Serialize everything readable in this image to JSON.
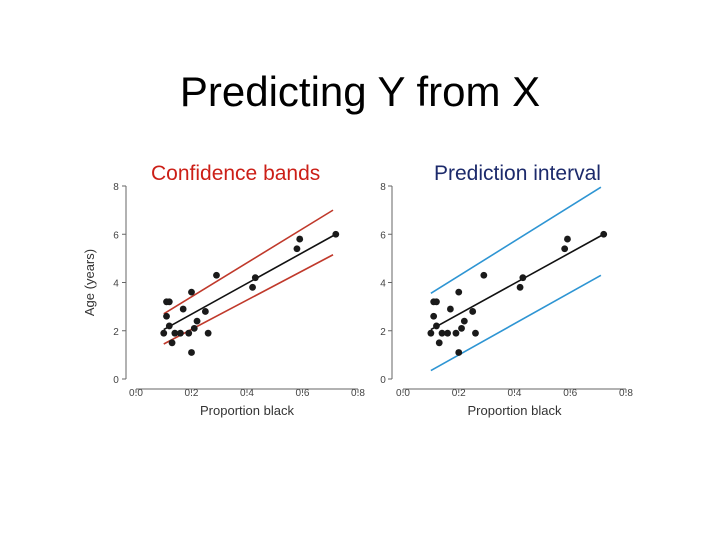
{
  "slide": {
    "title": "Predicting Y from X",
    "caption_left": "Confidence bands",
    "caption_right": "Prediction interval"
  },
  "chart_data": [
    {
      "type": "scatter",
      "title": "",
      "xlabel": "Proportion black",
      "ylabel": "Age (years)",
      "xlim": [
        0.0,
        0.8
      ],
      "ylim": [
        0,
        8
      ],
      "xticks": [
        "0.0",
        "0.2",
        "0.4",
        "0.6",
        "0.8"
      ],
      "yticks": [
        "0",
        "2",
        "4",
        "6",
        "8"
      ],
      "points": [
        {
          "x": 0.1,
          "y": 1.9
        },
        {
          "x": 0.11,
          "y": 2.6
        },
        {
          "x": 0.11,
          "y": 3.2
        },
        {
          "x": 0.12,
          "y": 3.2
        },
        {
          "x": 0.12,
          "y": 2.2
        },
        {
          "x": 0.13,
          "y": 1.5
        },
        {
          "x": 0.14,
          "y": 1.9
        },
        {
          "x": 0.16,
          "y": 1.9
        },
        {
          "x": 0.17,
          "y": 2.9
        },
        {
          "x": 0.19,
          "y": 1.9
        },
        {
          "x": 0.2,
          "y": 1.1
        },
        {
          "x": 0.2,
          "y": 3.6
        },
        {
          "x": 0.21,
          "y": 2.1
        },
        {
          "x": 0.22,
          "y": 2.4
        },
        {
          "x": 0.25,
          "y": 2.8
        },
        {
          "x": 0.26,
          "y": 1.9
        },
        {
          "x": 0.29,
          "y": 4.3
        },
        {
          "x": 0.42,
          "y": 3.8
        },
        {
          "x": 0.43,
          "y": 4.2
        },
        {
          "x": 0.58,
          "y": 5.4
        },
        {
          "x": 0.59,
          "y": 5.8
        },
        {
          "x": 0.72,
          "y": 6.0
        }
      ],
      "fit_line": {
        "x": [
          0.1,
          0.72
        ],
        "y": [
          2.05,
          6.0
        ],
        "color": "#111111"
      },
      "bands": {
        "kind": "confidence",
        "color": "#c0392b",
        "upper": {
          "x": [
            0.1,
            0.71
          ],
          "y": [
            2.7,
            7.0
          ]
        },
        "lower": {
          "x": [
            0.1,
            0.71
          ],
          "y": [
            1.45,
            5.15
          ]
        }
      }
    },
    {
      "type": "scatter",
      "title": "",
      "xlabel": "Proportion black",
      "ylabel": "",
      "xlim": [
        0.0,
        0.8
      ],
      "ylim": [
        0,
        8
      ],
      "xticks": [
        "0.0",
        "0.2",
        "0.4",
        "0.6",
        "0.8"
      ],
      "yticks": [
        "0",
        "2",
        "4",
        "6",
        "8"
      ],
      "points": [
        {
          "x": 0.1,
          "y": 1.9
        },
        {
          "x": 0.11,
          "y": 2.6
        },
        {
          "x": 0.11,
          "y": 3.2
        },
        {
          "x": 0.12,
          "y": 3.2
        },
        {
          "x": 0.12,
          "y": 2.2
        },
        {
          "x": 0.13,
          "y": 1.5
        },
        {
          "x": 0.14,
          "y": 1.9
        },
        {
          "x": 0.16,
          "y": 1.9
        },
        {
          "x": 0.17,
          "y": 2.9
        },
        {
          "x": 0.19,
          "y": 1.9
        },
        {
          "x": 0.2,
          "y": 1.1
        },
        {
          "x": 0.2,
          "y": 3.6
        },
        {
          "x": 0.21,
          "y": 2.1
        },
        {
          "x": 0.22,
          "y": 2.4
        },
        {
          "x": 0.25,
          "y": 2.8
        },
        {
          "x": 0.26,
          "y": 1.9
        },
        {
          "x": 0.29,
          "y": 4.3
        },
        {
          "x": 0.42,
          "y": 3.8
        },
        {
          "x": 0.43,
          "y": 4.2
        },
        {
          "x": 0.58,
          "y": 5.4
        },
        {
          "x": 0.59,
          "y": 5.8
        },
        {
          "x": 0.72,
          "y": 6.0
        }
      ],
      "fit_line": {
        "x": [
          0.1,
          0.72
        ],
        "y": [
          2.05,
          6.0
        ],
        "color": "#111111"
      },
      "bands": {
        "kind": "prediction",
        "color": "#2e95d3",
        "upper": {
          "x": [
            0.1,
            0.71
          ],
          "y": [
            3.55,
            7.95
          ]
        },
        "lower": {
          "x": [
            0.1,
            0.71
          ],
          "y": [
            0.35,
            4.3
          ]
        }
      }
    }
  ]
}
